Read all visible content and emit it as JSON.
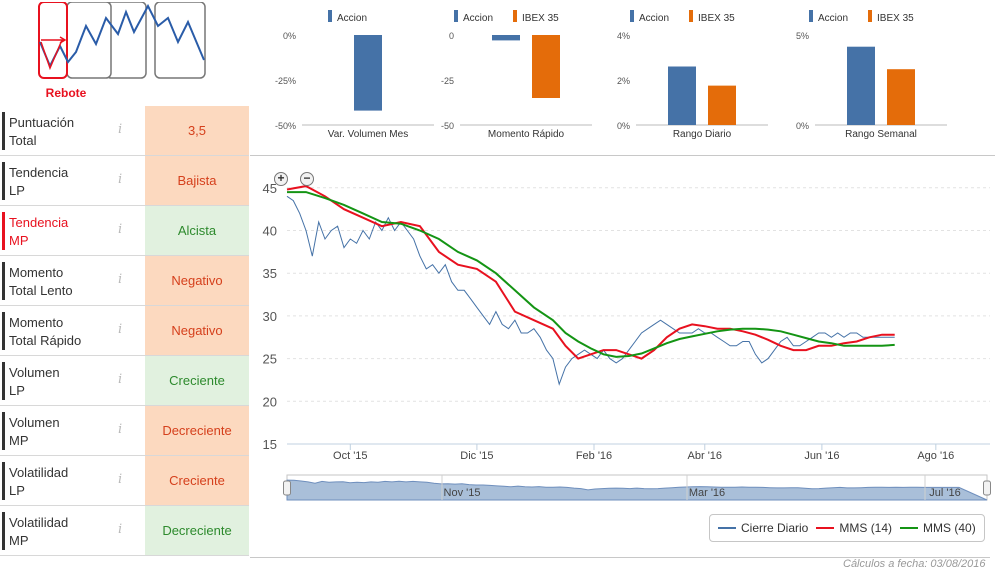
{
  "pattern": {
    "label": "Rebote",
    "icon": "rebote-pattern-icon"
  },
  "indicators": [
    {
      "name": [
        "Puntuación",
        "Total"
      ],
      "value": "3,5",
      "tone": "neg",
      "active": false
    },
    {
      "name": [
        "Tendencia",
        "LP"
      ],
      "value": "Bajista",
      "tone": "neg",
      "active": false
    },
    {
      "name": [
        "Tendencia",
        "MP"
      ],
      "value": "Alcista",
      "tone": "pos",
      "active": true
    },
    {
      "name": [
        "Momento",
        "Total Lento"
      ],
      "value": "Negativo",
      "tone": "neg",
      "active": false
    },
    {
      "name": [
        "Momento",
        "Total Rápido"
      ],
      "value": "Negativo",
      "tone": "neg",
      "active": false
    },
    {
      "name": [
        "Volumen",
        "LP"
      ],
      "value": "Creciente",
      "tone": "pos",
      "active": false
    },
    {
      "name": [
        "Volumen",
        "MP"
      ],
      "value": "Decreciente",
      "tone": "neg",
      "active": false
    },
    {
      "name": [
        "Volatilidad",
        "LP"
      ],
      "value": "Creciente",
      "tone": "neg",
      "active": false
    },
    {
      "name": [
        "Volatilidad",
        "MP"
      ],
      "value": "Decreciente",
      "tone": "pos",
      "active": false
    }
  ],
  "info_symbol": "i",
  "colors": {
    "accion": "#4572a7",
    "ibex": "#e46c0a",
    "cierre": "#4572a7",
    "mms14": "#e8111f",
    "mms40": "#149414"
  },
  "chart_data": [
    {
      "type": "bar",
      "title": "Var. Volumen Mes",
      "legend": [
        "Accion"
      ],
      "series": [
        {
          "name": "Accion",
          "values": [
            -42
          ]
        }
      ],
      "ylim": [
        -50,
        0
      ],
      "ticks": [
        "0%",
        "-25%",
        "-50%"
      ],
      "tick_values": [
        0,
        -25,
        -50
      ]
    },
    {
      "type": "bar",
      "title": "Momento Rápido",
      "legend": [
        "Accion",
        "IBEX 35"
      ],
      "series": [
        {
          "name": "Accion",
          "values": [
            -3
          ]
        },
        {
          "name": "IBEX 35",
          "values": [
            -35
          ]
        }
      ],
      "ylim": [
        -50,
        0
      ],
      "ticks": [
        "0",
        "-25",
        "-50"
      ],
      "tick_values": [
        0,
        -25,
        -50
      ]
    },
    {
      "type": "bar",
      "title": "Rango Diario",
      "legend": [
        "Accion",
        "IBEX 35"
      ],
      "series": [
        {
          "name": "Accion",
          "values": [
            2.6
          ]
        },
        {
          "name": "IBEX 35",
          "values": [
            1.75
          ]
        }
      ],
      "ylim": [
        0,
        4
      ],
      "ticks": [
        "4%",
        "2%",
        "0%"
      ],
      "tick_values": [
        4,
        2,
        0
      ]
    },
    {
      "type": "bar",
      "title": "Rango Semanal",
      "legend": [
        "Accion",
        "IBEX 35"
      ],
      "series": [
        {
          "name": "Accion",
          "values": [
            4.35
          ]
        },
        {
          "name": "IBEX 35",
          "values": [
            3.1
          ]
        }
      ],
      "ylim": [
        0,
        5
      ],
      "ticks": [
        "5%",
        "0%"
      ],
      "tick_values": [
        5,
        0
      ]
    },
    {
      "type": "line",
      "title": "",
      "yticks": [
        "45",
        "40",
        "35",
        "30",
        "25",
        "20",
        "15"
      ],
      "ytick_values": [
        45,
        40,
        35,
        30,
        25,
        20,
        15
      ],
      "ylim": [
        15,
        46.5
      ],
      "xlim": [
        0,
        100
      ],
      "xticks": [
        {
          "label": "Oct '15",
          "x": 10
        },
        {
          "label": "Dic '15",
          "x": 30
        },
        {
          "label": "Feb '16",
          "x": 48.5
        },
        {
          "label": "Abr '16",
          "x": 66
        },
        {
          "label": "Jun '16",
          "x": 84.5
        },
        {
          "label": "Ago '16",
          "x": 102.5
        }
      ],
      "series": [
        {
          "name": "Cierre Diario",
          "color": "#4572a7",
          "x": [
            0,
            1,
            2,
            3,
            4,
            5,
            6,
            7,
            8,
            9,
            10,
            11,
            12,
            13,
            14,
            15,
            16,
            17,
            18,
            19,
            20,
            21,
            22,
            23,
            24,
            25,
            26,
            27,
            28,
            29,
            30,
            31,
            32,
            33,
            34,
            35,
            36,
            37,
            38,
            39,
            40,
            41,
            42,
            43,
            44,
            45,
            46,
            47,
            48,
            49,
            50,
            51,
            52,
            53,
            54,
            55,
            56,
            57,
            58,
            59,
            60,
            61,
            62,
            63,
            64,
            65,
            66,
            67,
            68,
            69,
            70,
            71,
            72,
            73,
            74,
            75,
            76,
            77,
            78,
            79,
            80,
            81,
            82,
            83,
            84,
            85,
            86,
            87,
            88,
            89,
            90,
            91,
            92,
            93,
            94,
            95,
            96
          ],
          "values": [
            44,
            43.5,
            42,
            40,
            37,
            41,
            39,
            40,
            40.5,
            38,
            39,
            38.5,
            40,
            39,
            41,
            40,
            41.5,
            40,
            41,
            40,
            39,
            37,
            35.5,
            36,
            35,
            36,
            34,
            33,
            33,
            32,
            31,
            30,
            29,
            30.5,
            29,
            28.5,
            29.5,
            28,
            28,
            28.5,
            27.5,
            26,
            25,
            22,
            24,
            25,
            25.5,
            26,
            25.5,
            25,
            26,
            25,
            24.5,
            25,
            26,
            27,
            28,
            28.5,
            29,
            29.5,
            29,
            28.5,
            28,
            28,
            28,
            28.5,
            28,
            28,
            27.5,
            27,
            26.5,
            26.5,
            27,
            27,
            25.5,
            24.5,
            25,
            26,
            27,
            27.5,
            26.5,
            26.5,
            27,
            27.5,
            28,
            28,
            27.5,
            28,
            27.5,
            28,
            28,
            27.5,
            27.5,
            27.5,
            27.5,
            27.5,
            27.5
          ]
        },
        {
          "name": "MMS (14)",
          "color": "#e8111f",
          "x": [
            0,
            3,
            6,
            9,
            12,
            15,
            18,
            21,
            24,
            27,
            30,
            33,
            36,
            39,
            42,
            44,
            46,
            48,
            50,
            52,
            54,
            56,
            58,
            60,
            62,
            64,
            66,
            68,
            70,
            72,
            74,
            76,
            78,
            80,
            82,
            84,
            86,
            88,
            90,
            92,
            94,
            96
          ],
          "values": [
            44.8,
            45.2,
            44,
            42.5,
            41.5,
            40.5,
            41,
            40.5,
            37.5,
            36,
            35.5,
            34,
            30.5,
            29.5,
            28.5,
            26.5,
            25,
            25.5,
            26,
            26,
            25.5,
            25,
            26,
            27.5,
            28.5,
            29,
            28.8,
            28.5,
            28.5,
            28.2,
            27.8,
            27.2,
            26.5,
            26,
            26,
            26.5,
            26.5,
            26.8,
            27,
            27.5,
            27.8,
            27.8
          ]
        },
        {
          "name": "MMS (40)",
          "color": "#149414",
          "x": [
            0,
            3,
            6,
            9,
            12,
            15,
            18,
            21,
            24,
            27,
            30,
            33,
            36,
            39,
            42,
            44,
            46,
            48,
            50,
            52,
            54,
            56,
            58,
            60,
            62,
            64,
            66,
            68,
            70,
            72,
            74,
            76,
            78,
            80,
            82,
            84,
            86,
            88,
            90,
            92,
            94,
            96
          ],
          "values": [
            44.5,
            44.5,
            43.8,
            43,
            42,
            41,
            40.8,
            40,
            39,
            37.5,
            36.5,
            35,
            33,
            31,
            29.5,
            28,
            27,
            26.2,
            25.5,
            25.2,
            25.3,
            25.6,
            26.2,
            26.8,
            27.3,
            27.6,
            27.9,
            28.2,
            28.4,
            28.5,
            28.5,
            28.4,
            28.2,
            27.8,
            27.4,
            27,
            26.8,
            26.5,
            26.5,
            26.5,
            26.5,
            26.6
          ]
        }
      ],
      "navigator": {
        "labels": [
          "Nov '15",
          "Mar '16",
          "Jul '16"
        ]
      }
    }
  ],
  "legend": {
    "items": [
      "Cierre Diario",
      "MMS (14)",
      "MMS (40)"
    ]
  },
  "footer": "Cálculos a fecha: 03/08/2016"
}
